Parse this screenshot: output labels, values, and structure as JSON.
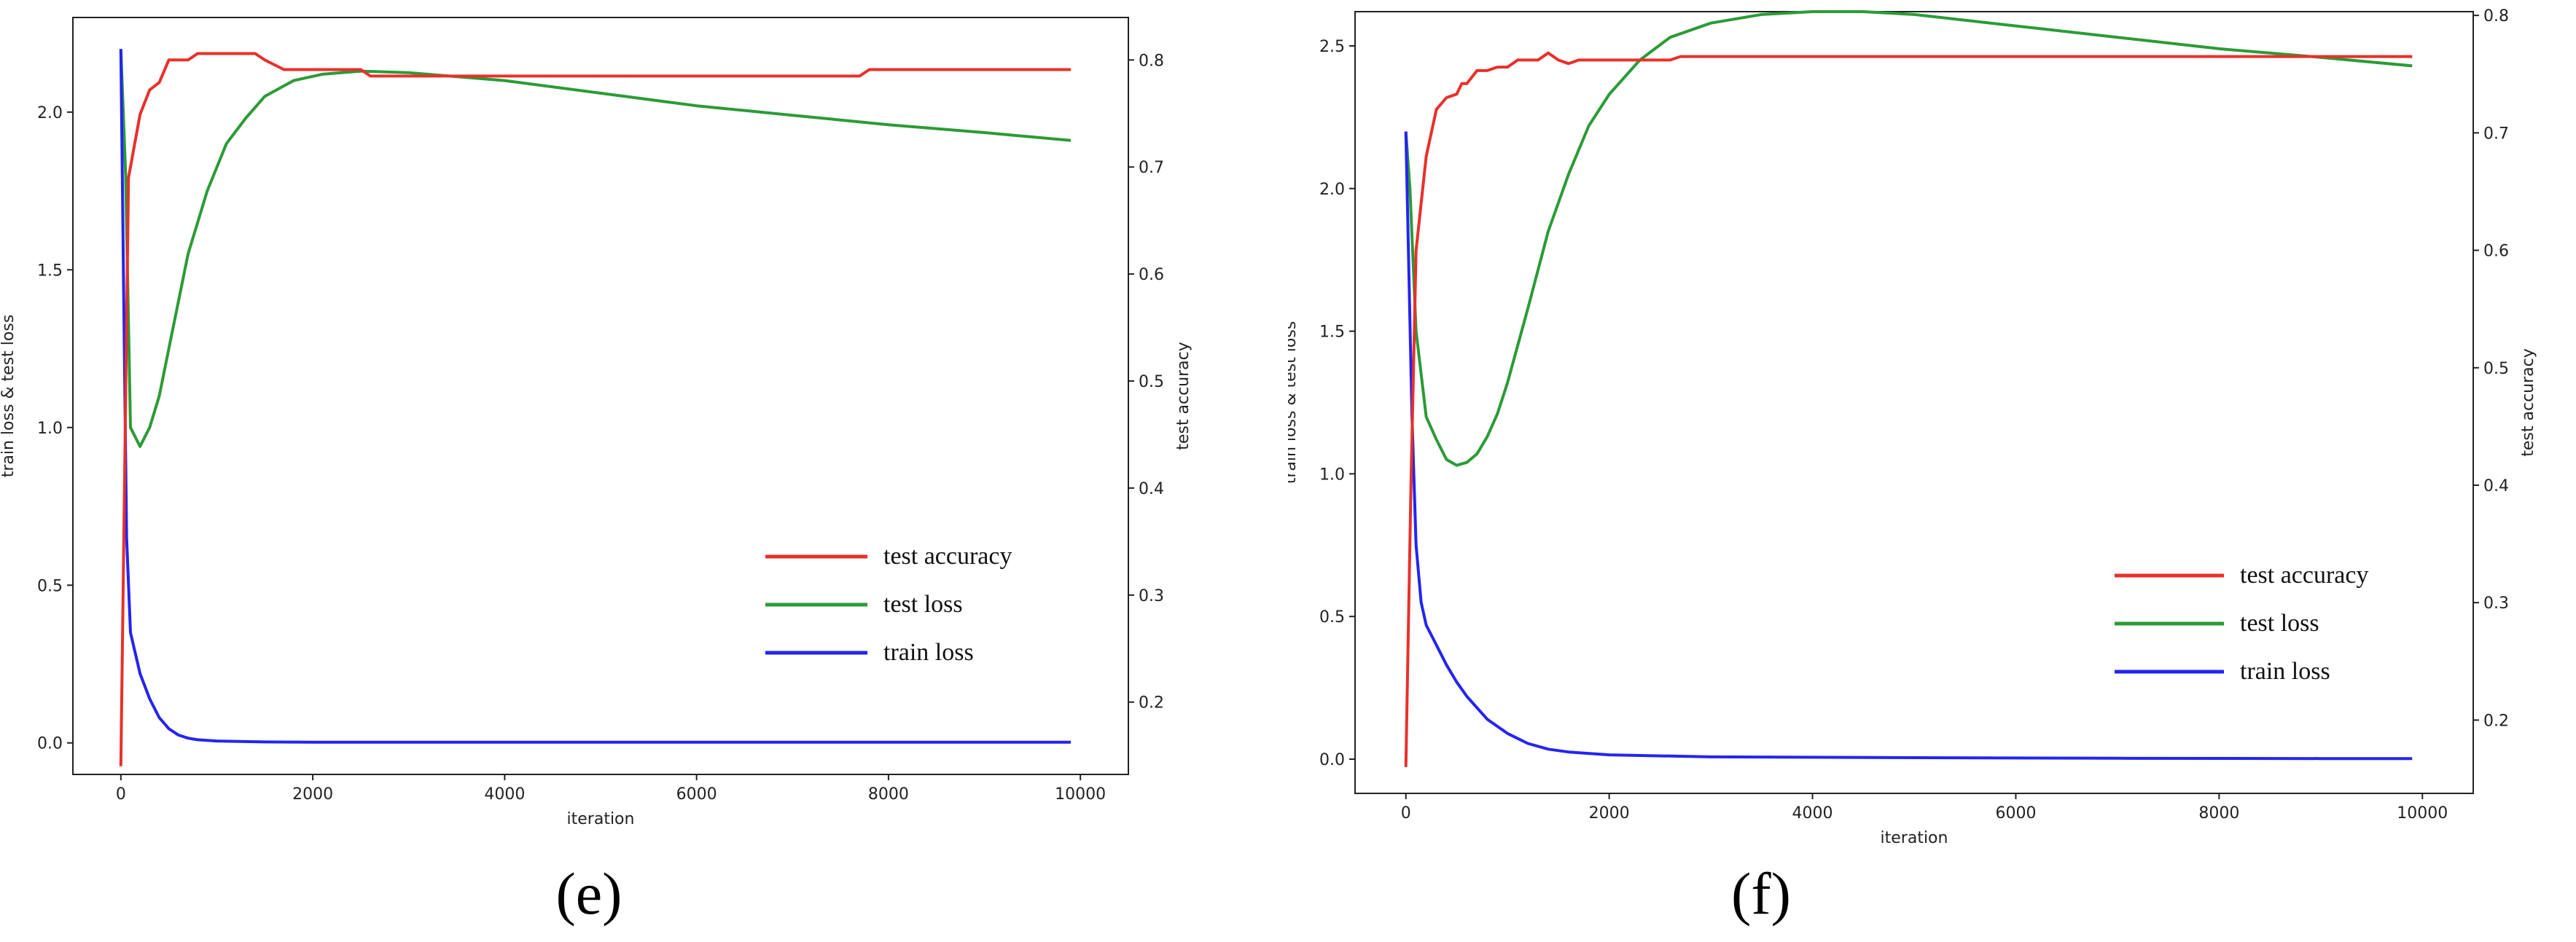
{
  "charts": [
    {
      "caption": "(e)",
      "chart_data": {
        "type": "line",
        "xlabel": "iteration",
        "ylabel_left": "train loss & test loss",
        "ylabel_right": "test accuracy",
        "xlim": [
          -500,
          10500
        ],
        "ylim_left": [
          -0.1,
          2.3
        ],
        "ylim_right": [
          0.1324,
          0.8397
        ],
        "x_ticks": [
          0,
          2000,
          4000,
          6000,
          8000,
          10000
        ],
        "y_left_ticks": [
          0.0,
          0.5,
          1.0,
          1.5,
          2.0
        ],
        "y_right_ticks": [
          0.2,
          0.3,
          0.4,
          0.5,
          0.6,
          0.7,
          0.8
        ],
        "legend": [
          "test accuracy",
          "test loss",
          "train loss"
        ],
        "colors": {
          "test accuracy": "#e8302a",
          "test loss": "#2b9b36",
          "train loss": "#2424f0"
        },
        "series": [
          {
            "name": "test accuracy",
            "axis": "right",
            "x": [
              0,
              80,
              200,
              300,
              400,
              500,
              600,
              700,
              800,
              1000,
              1200,
              1400,
              1500,
              1700,
              2000,
              2500,
              2600,
              3000,
              4000,
              5000,
              6000,
              7000,
              7700,
              7800,
              8000,
              9000,
              9900
            ],
            "y": [
              0.14,
              0.69,
              0.749,
              0.772,
              0.779,
              0.8,
              0.8,
              0.8,
              0.806,
              0.806,
              0.806,
              0.806,
              0.8,
              0.791,
              0.791,
              0.791,
              0.785,
              0.785,
              0.785,
              0.785,
              0.785,
              0.785,
              0.785,
              0.791,
              0.791,
              0.791,
              0.791
            ]
          },
          {
            "name": "test loss",
            "axis": "left",
            "x": [
              0,
              50,
              100,
              200,
              300,
              400,
              500,
              700,
              900,
              1100,
              1300,
              1500,
              1800,
              2100,
              2500,
              3000,
              4000,
              5000,
              6000,
              7000,
              8000,
              9000,
              9900
            ],
            "y": [
              2.2,
              1.8,
              1.0,
              0.94,
              1.0,
              1.1,
              1.25,
              1.55,
              1.75,
              1.9,
              1.98,
              2.05,
              2.1,
              2.12,
              2.13,
              2.125,
              2.1,
              2.06,
              2.02,
              1.99,
              1.96,
              1.935,
              1.91
            ]
          },
          {
            "name": "train loss",
            "axis": "left",
            "x": [
              0,
              30,
              60,
              100,
              200,
              300,
              400,
              500,
              600,
              700,
              800,
              1000,
              1500,
              2000,
              3000,
              5000,
              7000,
              9000,
              9900
            ],
            "y": [
              2.2,
              1.4,
              0.65,
              0.35,
              0.22,
              0.14,
              0.08,
              0.045,
              0.025,
              0.015,
              0.01,
              0.006,
              0.003,
              0.002,
              0.002,
              0.002,
              0.002,
              0.002,
              0.002
            ]
          }
        ]
      }
    },
    {
      "caption": "(f)",
      "chart_data": {
        "type": "line",
        "xlabel": "iteration",
        "ylabel_left": "train loss & test loss",
        "ylabel_right": "test accuracy",
        "xlim": [
          -500,
          10500
        ],
        "ylim_left": [
          -0.12,
          2.62
        ],
        "ylim_right": [
          0.1376,
          0.8032
        ],
        "x_ticks": [
          0,
          2000,
          4000,
          6000,
          8000,
          10000
        ],
        "y_left_ticks": [
          0.0,
          0.5,
          1.0,
          1.5,
          2.0,
          2.5
        ],
        "y_right_ticks": [
          0.2,
          0.3,
          0.4,
          0.5,
          0.6,
          0.7,
          0.8
        ],
        "legend": [
          "test accuracy",
          "test loss",
          "train loss"
        ],
        "colors": {
          "test accuracy": "#e8302a",
          "test loss": "#2b9b36",
          "train loss": "#2424f0"
        },
        "series": [
          {
            "name": "test accuracy",
            "axis": "right",
            "x": [
              0,
              50,
              100,
              200,
              300,
              400,
              500,
              550,
              600,
              700,
              800,
              900,
              1000,
              1100,
              1200,
              1300,
              1400,
              1500,
              1600,
              1700,
              2000,
              2600,
              2700,
              3000,
              4000,
              6000,
              8000,
              9900
            ],
            "y": [
              0.16,
              0.4,
              0.6,
              0.68,
              0.72,
              0.73,
              0.733,
              0.742,
              0.742,
              0.753,
              0.753,
              0.756,
              0.756,
              0.762,
              0.762,
              0.762,
              0.768,
              0.762,
              0.759,
              0.762,
              0.762,
              0.762,
              0.765,
              0.765,
              0.765,
              0.765,
              0.765,
              0.765
            ]
          },
          {
            "name": "test loss",
            "axis": "left",
            "x": [
              0,
              40,
              100,
              200,
              300,
              400,
              500,
              600,
              700,
              800,
              900,
              1000,
              1200,
              1400,
              1600,
              1800,
              2000,
              2300,
              2600,
              3000,
              3500,
              4000,
              4500,
              5000,
              6000,
              7000,
              8000,
              9000,
              9900
            ],
            "y": [
              2.2,
              2.0,
              1.5,
              1.2,
              1.12,
              1.05,
              1.03,
              1.04,
              1.07,
              1.13,
              1.21,
              1.32,
              1.58,
              1.85,
              2.05,
              2.22,
              2.33,
              2.45,
              2.53,
              2.58,
              2.61,
              2.62,
              2.62,
              2.61,
              2.57,
              2.53,
              2.49,
              2.46,
              2.43
            ]
          },
          {
            "name": "train loss",
            "axis": "left",
            "x": [
              0,
              30,
              60,
              100,
              150,
              200,
              300,
              400,
              500,
              600,
              700,
              800,
              1000,
              1200,
              1400,
              1600,
              2000,
              3000,
              5000,
              7000,
              9000,
              9900
            ],
            "y": [
              2.2,
              1.7,
              1.2,
              0.75,
              0.55,
              0.47,
              0.4,
              0.33,
              0.27,
              0.22,
              0.18,
              0.14,
              0.09,
              0.055,
              0.035,
              0.025,
              0.015,
              0.008,
              0.005,
              0.003,
              0.002,
              0.002
            ]
          }
        ]
      }
    }
  ]
}
